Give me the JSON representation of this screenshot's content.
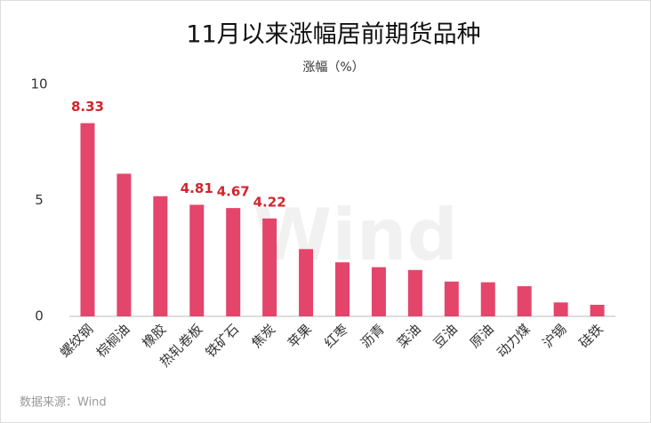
{
  "chart_data": {
    "type": "bar",
    "title": "11月以来涨幅居前期货品种",
    "subtitle": "涨幅（%）",
    "categories": [
      "螺纹钢",
      "棕榈油",
      "橡胶",
      "热轧卷板",
      "铁矿石",
      "焦炭",
      "苹果",
      "红枣",
      "沥青",
      "菜油",
      "豆油",
      "原油",
      "动力煤",
      "沪锡",
      "硅铁"
    ],
    "values": [
      8.33,
      6.15,
      5.18,
      4.81,
      4.67,
      4.22,
      2.9,
      2.33,
      2.12,
      2.0,
      1.5,
      1.47,
      1.3,
      0.6,
      0.5
    ],
    "value_labels": [
      "8.33",
      null,
      null,
      "4.81",
      "4.67",
      "4.22",
      null,
      null,
      null,
      null,
      null,
      null,
      null,
      null,
      null
    ],
    "color": "#e4456a",
    "label_color": "#d0262e",
    "ylim": [
      0,
      10
    ],
    "yticks": [
      0,
      5,
      10
    ],
    "grid": false,
    "watermark": "Wind",
    "source": "数据来源：Wind"
  }
}
